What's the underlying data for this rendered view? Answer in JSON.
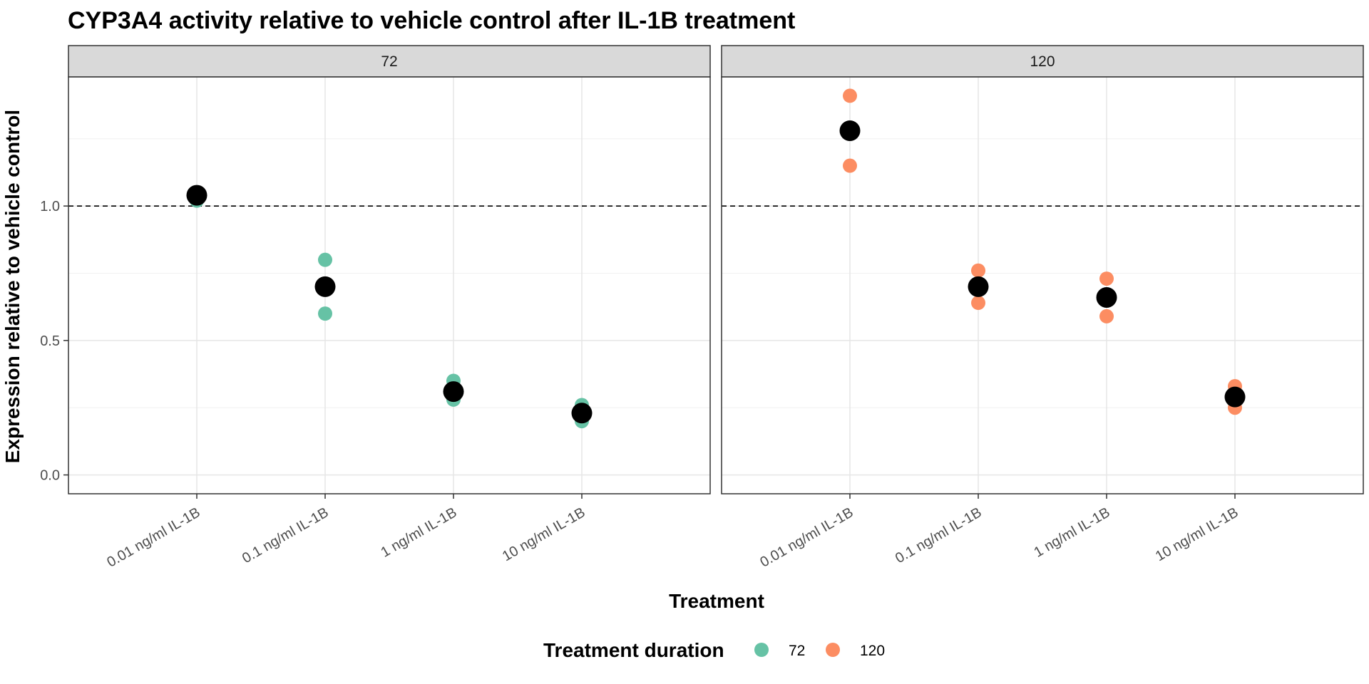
{
  "chart_data": {
    "type": "scatter",
    "title": "CYP3A4 activity relative to vehicle control after IL-1B treatment",
    "xlabel": "Treatment",
    "ylabel": "Expression relative to vehicle control",
    "categories": [
      "0.01 ng/ml IL-1B",
      "0.1 ng/ml IL-1B",
      "1 ng/ml IL-1B",
      "10 ng/ml IL-1B"
    ],
    "ylim": [
      -0.07,
      1.48
    ],
    "yticks": [
      0.0,
      0.5,
      1.0
    ],
    "ytick_labels": [
      "0.0",
      "0.5",
      "1.0"
    ],
    "reference_line": 1.0,
    "grid": true,
    "legend": {
      "title": "Treatment duration",
      "position": "bottom",
      "entries": [
        {
          "label": "72",
          "color": "#66c2a5"
        },
        {
          "label": "120",
          "color": "#fc8d62"
        }
      ]
    },
    "mean_color": "#000000",
    "facets": [
      {
        "strip_label": "72",
        "color": "#66c2a5",
        "points": [
          {
            "category": "0.01 ng/ml IL-1B",
            "values": [
              1.05,
              1.02
            ]
          },
          {
            "category": "0.1 ng/ml IL-1B",
            "values": [
              0.8,
              0.6
            ]
          },
          {
            "category": "1 ng/ml IL-1B",
            "values": [
              0.35,
              0.28
            ]
          },
          {
            "category": "10 ng/ml IL-1B",
            "values": [
              0.26,
              0.2
            ]
          }
        ],
        "means": [
          1.04,
          0.7,
          0.31,
          0.23
        ]
      },
      {
        "strip_label": "120",
        "color": "#fc8d62",
        "points": [
          {
            "category": "0.01 ng/ml IL-1B",
            "values": [
              1.41,
              1.15
            ]
          },
          {
            "category": "0.1 ng/ml IL-1B",
            "values": [
              0.76,
              0.64
            ]
          },
          {
            "category": "1 ng/ml IL-1B",
            "values": [
              0.73,
              0.59
            ]
          },
          {
            "category": "10 ng/ml IL-1B",
            "values": [
              0.33,
              0.25
            ]
          }
        ],
        "means": [
          1.28,
          0.7,
          0.66,
          0.29
        ]
      }
    ]
  }
}
